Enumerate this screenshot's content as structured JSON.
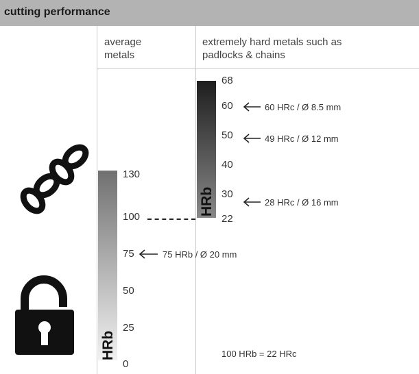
{
  "header": {
    "title": "cutting performance"
  },
  "columns": {
    "average": "average\nmetals",
    "hard": "extremely hard metals such as\npadlocks & chains"
  },
  "average_bar": {
    "unit_label": "HRb",
    "ticks": [
      "130",
      "100",
      "75",
      "50",
      "25",
      "0"
    ],
    "annotation": "75 HRb / Ø 20 mm"
  },
  "hard_bar": {
    "unit_label": "HRb",
    "ticks": [
      "68",
      "60",
      "50",
      "40",
      "30",
      "22"
    ],
    "annotations": [
      "60 HRc / Ø 8.5 mm",
      "49 HRc / Ø 12 mm",
      "28 HRc / Ø 16 mm"
    ]
  },
  "footnote": "100 HRb = 22 HRc",
  "icons": [
    "chain-icon",
    "padlock-icon"
  ]
}
